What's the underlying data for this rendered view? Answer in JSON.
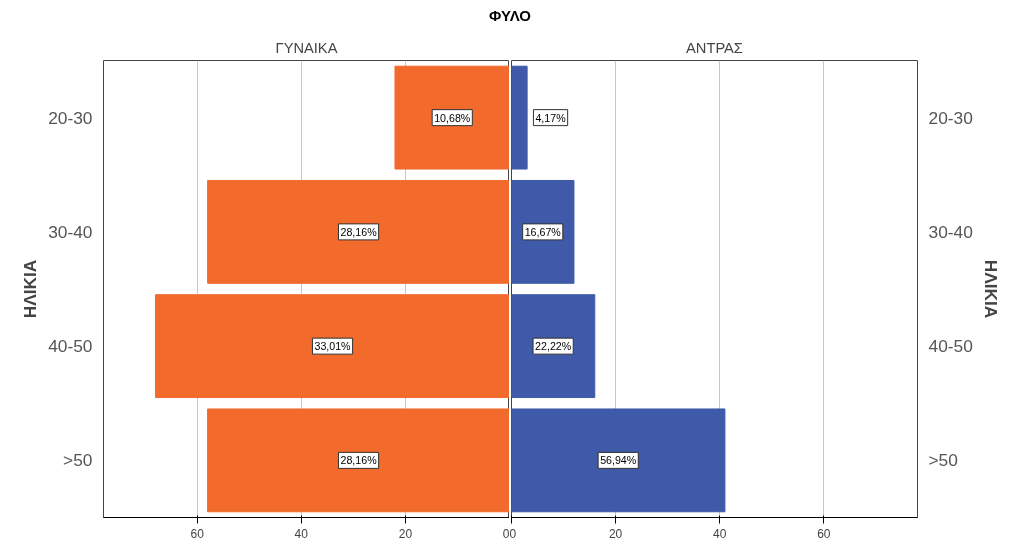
{
  "chart_data": [
    {
      "type": "bar",
      "orientation": "horizontal",
      "title": "ΦΥΛΟ",
      "subtitle": "ΓΥΝΑΙΚΑ",
      "ylabel": "ΗΛΙΚΙΑ",
      "categories": [
        "20-30",
        "30-40",
        "40-50",
        ">50"
      ],
      "series": [
        {
          "color": "#f26a2c",
          "values": [
            22,
            58,
            68,
            58
          ]
        }
      ],
      "annotations": [
        {
          "text": "10,68%",
          "x": 11,
          "y": "20-30"
        },
        {
          "text": "28,16%",
          "x": 29,
          "y": "30-40"
        },
        {
          "text": "33,01%",
          "x": 34,
          "y": "40-50"
        },
        {
          "text": "28,16%",
          "x": 29,
          "y": ">50"
        }
      ],
      "xlim": [
        78,
        0
      ],
      "xticks": [
        60,
        40,
        20,
        0
      ],
      "grid": "x"
    },
    {
      "type": "bar",
      "orientation": "horizontal",
      "subtitle": "ΑΝΤΡΑΣ",
      "ylabel": "ΗΛΙΚΙΑ",
      "categories": [
        "20-30",
        "30-40",
        "40-50",
        ">50"
      ],
      "series": [
        {
          "color": "#3e5aa9",
          "values": [
            3,
            12,
            16,
            41
          ]
        }
      ],
      "annotations": [
        {
          "text": "4,17%",
          "x": 7.5,
          "y": "20-30"
        },
        {
          "text": "16,67%",
          "x": 6,
          "y": "30-40"
        },
        {
          "text": "22,22%",
          "x": 8,
          "y": "40-50"
        },
        {
          "text": "56,94%",
          "x": 20.5,
          "y": ">50"
        }
      ],
      "xlim": [
        0,
        78
      ],
      "xticks": [
        0,
        20,
        40,
        60
      ],
      "grid": "x"
    }
  ]
}
